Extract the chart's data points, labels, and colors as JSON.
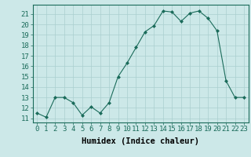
{
  "x": [
    0,
    1,
    2,
    3,
    4,
    5,
    6,
    7,
    8,
    9,
    10,
    11,
    12,
    13,
    14,
    15,
    16,
    17,
    18,
    19,
    20,
    21,
    22,
    23
  ],
  "y": [
    11.5,
    11.1,
    13.0,
    13.0,
    12.5,
    11.3,
    12.1,
    11.5,
    12.5,
    15.0,
    16.3,
    17.8,
    19.3,
    19.9,
    21.3,
    21.2,
    20.3,
    21.1,
    21.3,
    20.6,
    19.4,
    14.6,
    13.0,
    13.0
  ],
  "line_color": "#1a6b5a",
  "marker": "D",
  "marker_size": 2,
  "bg_color": "#cce8e8",
  "grid_color": "#aacfcf",
  "xlabel": "Humidex (Indice chaleur)",
  "ylabel_ticks": [
    11,
    12,
    13,
    14,
    15,
    16,
    17,
    18,
    19,
    20,
    21
  ],
  "ylim": [
    10.6,
    21.9
  ],
  "xlim": [
    -0.5,
    23.5
  ],
  "xlabel_fontsize": 7.5,
  "tick_fontsize": 6.5
}
